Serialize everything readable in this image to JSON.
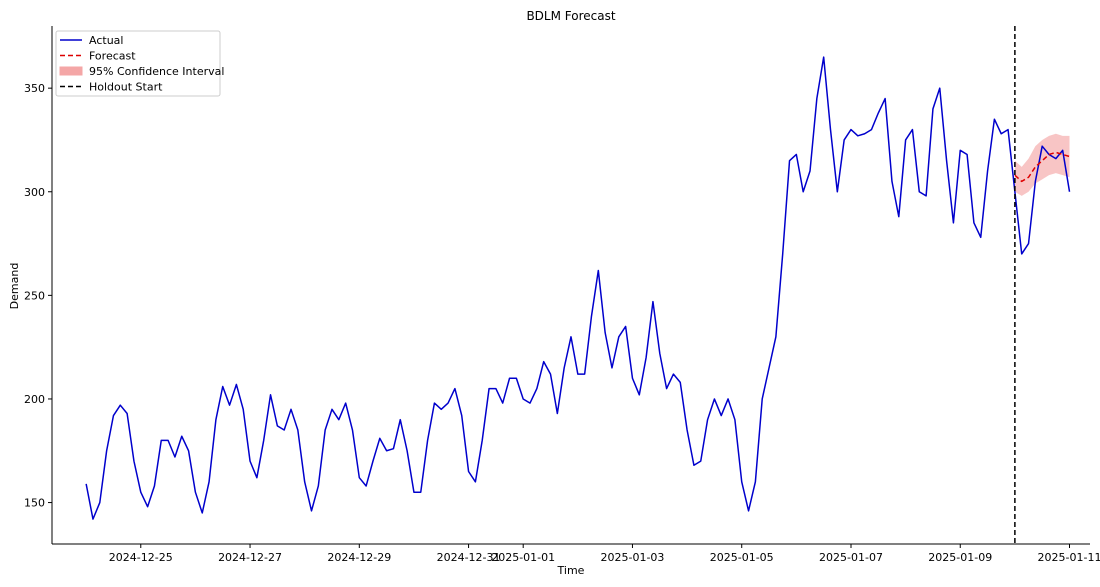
{
  "chart_data": {
    "type": "line",
    "title": "BDLM Forecast",
    "xlabel": "Time",
    "ylabel": "Demand",
    "xlim": [
      "2024-12-23T09:00",
      "2025-01-11T09:00"
    ],
    "ylim": [
      130,
      380
    ],
    "grid": false,
    "legend_position": "top-left",
    "x_ticks": [
      "2024-12-25",
      "2024-12-27",
      "2024-12-29",
      "2024-12-31",
      "2025-01-01",
      "2025-01-03",
      "2025-01-05",
      "2025-01-07",
      "2025-01-09",
      "2025-01-11"
    ],
    "y_ticks": [
      150,
      200,
      250,
      300,
      350
    ],
    "colors": {
      "actual": "#0000cc",
      "forecast": "#dd0000",
      "ci": "#f4a6a6",
      "holdout": "#000000"
    },
    "holdout_start": "2025-01-10T00:00",
    "series": [
      {
        "name": "Actual",
        "style": "solid",
        "points": [
          [
            "2024-12-24T00:00",
            159
          ],
          [
            "2024-12-24T03:00",
            142
          ],
          [
            "2024-12-24T06:00",
            150
          ],
          [
            "2024-12-24T09:00",
            175
          ],
          [
            "2024-12-24T12:00",
            192
          ],
          [
            "2024-12-24T15:00",
            197
          ],
          [
            "2024-12-24T18:00",
            193
          ],
          [
            "2024-12-24T21:00",
            170
          ],
          [
            "2024-12-25T00:00",
            155
          ],
          [
            "2024-12-25T03:00",
            148
          ],
          [
            "2024-12-25T06:00",
            158
          ],
          [
            "2024-12-25T09:00",
            180
          ],
          [
            "2024-12-25T12:00",
            180
          ],
          [
            "2024-12-25T15:00",
            172
          ],
          [
            "2024-12-25T18:00",
            182
          ],
          [
            "2024-12-25T21:00",
            175
          ],
          [
            "2024-12-26T00:00",
            155
          ],
          [
            "2024-12-26T03:00",
            145
          ],
          [
            "2024-12-26T06:00",
            160
          ],
          [
            "2024-12-26T09:00",
            190
          ],
          [
            "2024-12-26T12:00",
            206
          ],
          [
            "2024-12-26T15:00",
            197
          ],
          [
            "2024-12-26T18:00",
            207
          ],
          [
            "2024-12-26T21:00",
            195
          ],
          [
            "2024-12-27T00:00",
            170
          ],
          [
            "2024-12-27T03:00",
            162
          ],
          [
            "2024-12-27T06:00",
            180
          ],
          [
            "2024-12-27T09:00",
            202
          ],
          [
            "2024-12-27T12:00",
            187
          ],
          [
            "2024-12-27T15:00",
            185
          ],
          [
            "2024-12-27T18:00",
            195
          ],
          [
            "2024-12-27T21:00",
            185
          ],
          [
            "2024-12-28T00:00",
            160
          ],
          [
            "2024-12-28T03:00",
            146
          ],
          [
            "2024-12-28T06:00",
            158
          ],
          [
            "2024-12-28T09:00",
            185
          ],
          [
            "2024-12-28T12:00",
            195
          ],
          [
            "2024-12-28T15:00",
            190
          ],
          [
            "2024-12-28T18:00",
            198
          ],
          [
            "2024-12-28T21:00",
            185
          ],
          [
            "2024-12-29T00:00",
            162
          ],
          [
            "2024-12-29T03:00",
            158
          ],
          [
            "2024-12-29T06:00",
            170
          ],
          [
            "2024-12-29T09:00",
            181
          ],
          [
            "2024-12-29T12:00",
            175
          ],
          [
            "2024-12-29T15:00",
            176
          ],
          [
            "2024-12-29T18:00",
            190
          ],
          [
            "2024-12-29T21:00",
            175
          ],
          [
            "2024-12-30T00:00",
            155
          ],
          [
            "2024-12-30T03:00",
            155
          ],
          [
            "2024-12-30T06:00",
            180
          ],
          [
            "2024-12-30T09:00",
            198
          ],
          [
            "2024-12-30T12:00",
            195
          ],
          [
            "2024-12-30T15:00",
            198
          ],
          [
            "2024-12-30T18:00",
            205
          ],
          [
            "2024-12-30T21:00",
            192
          ],
          [
            "2024-12-31T00:00",
            165
          ],
          [
            "2024-12-31T03:00",
            160
          ],
          [
            "2024-12-31T06:00",
            180
          ],
          [
            "2024-12-31T09:00",
            205
          ],
          [
            "2024-12-31T12:00",
            205
          ],
          [
            "2024-12-31T15:00",
            198
          ],
          [
            "2024-12-31T18:00",
            210
          ],
          [
            "2024-12-31T21:00",
            210
          ],
          [
            "2025-01-01T00:00",
            200
          ],
          [
            "2025-01-01T03:00",
            198
          ],
          [
            "2025-01-01T06:00",
            205
          ],
          [
            "2025-01-01T09:00",
            218
          ],
          [
            "2025-01-01T12:00",
            212
          ],
          [
            "2025-01-01T15:00",
            193
          ],
          [
            "2025-01-01T18:00",
            215
          ],
          [
            "2025-01-01T21:00",
            230
          ],
          [
            "2025-01-02T00:00",
            212
          ],
          [
            "2025-01-02T03:00",
            212
          ],
          [
            "2025-01-02T06:00",
            240
          ],
          [
            "2025-01-02T09:00",
            262
          ],
          [
            "2025-01-02T12:00",
            232
          ],
          [
            "2025-01-02T15:00",
            215
          ],
          [
            "2025-01-02T18:00",
            230
          ],
          [
            "2025-01-02T21:00",
            235
          ],
          [
            "2025-01-03T00:00",
            210
          ],
          [
            "2025-01-03T03:00",
            202
          ],
          [
            "2025-01-03T06:00",
            220
          ],
          [
            "2025-01-03T09:00",
            247
          ],
          [
            "2025-01-03T12:00",
            222
          ],
          [
            "2025-01-03T15:00",
            205
          ],
          [
            "2025-01-03T18:00",
            212
          ],
          [
            "2025-01-03T21:00",
            208
          ],
          [
            "2025-01-04T00:00",
            185
          ],
          [
            "2025-01-04T03:00",
            168
          ],
          [
            "2025-01-04T06:00",
            170
          ],
          [
            "2025-01-04T09:00",
            190
          ],
          [
            "2025-01-04T12:00",
            200
          ],
          [
            "2025-01-04T15:00",
            192
          ],
          [
            "2025-01-04T18:00",
            200
          ],
          [
            "2025-01-04T21:00",
            190
          ],
          [
            "2025-01-05T00:00",
            160
          ],
          [
            "2025-01-05T03:00",
            146
          ],
          [
            "2025-01-05T06:00",
            160
          ],
          [
            "2025-01-05T09:00",
            200
          ],
          [
            "2025-01-05T12:00",
            215
          ],
          [
            "2025-01-05T15:00",
            230
          ],
          [
            "2025-01-05T18:00",
            270
          ],
          [
            "2025-01-05T21:00",
            315
          ],
          [
            "2025-01-06T00:00",
            318
          ],
          [
            "2025-01-06T03:00",
            300
          ],
          [
            "2025-01-06T06:00",
            310
          ],
          [
            "2025-01-06T09:00",
            345
          ],
          [
            "2025-01-06T12:00",
            365
          ],
          [
            "2025-01-06T15:00",
            330
          ],
          [
            "2025-01-06T18:00",
            300
          ],
          [
            "2025-01-06T21:00",
            325
          ],
          [
            "2025-01-07T00:00",
            330
          ],
          [
            "2025-01-07T03:00",
            327
          ],
          [
            "2025-01-07T06:00",
            328
          ],
          [
            "2025-01-07T09:00",
            330
          ],
          [
            "2025-01-07T12:00",
            338
          ],
          [
            "2025-01-07T15:00",
            345
          ],
          [
            "2025-01-07T18:00",
            305
          ],
          [
            "2025-01-07T21:00",
            288
          ],
          [
            "2025-01-08T00:00",
            325
          ],
          [
            "2025-01-08T03:00",
            330
          ],
          [
            "2025-01-08T06:00",
            300
          ],
          [
            "2025-01-08T09:00",
            298
          ],
          [
            "2025-01-08T12:00",
            340
          ],
          [
            "2025-01-08T15:00",
            350
          ],
          [
            "2025-01-08T18:00",
            315
          ],
          [
            "2025-01-08T21:00",
            285
          ],
          [
            "2025-01-09T00:00",
            320
          ],
          [
            "2025-01-09T03:00",
            318
          ],
          [
            "2025-01-09T06:00",
            285
          ],
          [
            "2025-01-09T09:00",
            278
          ],
          [
            "2025-01-09T12:00",
            310
          ],
          [
            "2025-01-09T15:00",
            335
          ],
          [
            "2025-01-09T18:00",
            328
          ],
          [
            "2025-01-09T21:00",
            330
          ],
          [
            "2025-01-10T00:00",
            300
          ],
          [
            "2025-01-10T03:00",
            270
          ],
          [
            "2025-01-10T06:00",
            275
          ],
          [
            "2025-01-10T09:00",
            305
          ],
          [
            "2025-01-10T12:00",
            322
          ],
          [
            "2025-01-10T15:00",
            318
          ],
          [
            "2025-01-10T18:00",
            316
          ],
          [
            "2025-01-10T21:00",
            320
          ],
          [
            "2025-01-11T00:00",
            300
          ]
        ]
      },
      {
        "name": "Forecast",
        "style": "dashed",
        "points": [
          [
            "2025-01-10T00:00",
            308
          ],
          [
            "2025-01-10T03:00",
            305
          ],
          [
            "2025-01-10T06:00",
            307
          ],
          [
            "2025-01-10T09:00",
            312
          ],
          [
            "2025-01-10T12:00",
            315
          ],
          [
            "2025-01-10T15:00",
            318
          ],
          [
            "2025-01-10T18:00",
            319
          ],
          [
            "2025-01-10T21:00",
            318
          ],
          [
            "2025-01-11T00:00",
            317
          ]
        ]
      }
    ],
    "confidence_interval": {
      "name": "95% Confidence Interval",
      "lower": [
        [
          "2025-01-10T00:00",
          300
        ],
        [
          "2025-01-10T03:00",
          298
        ],
        [
          "2025-01-10T06:00",
          300
        ],
        [
          "2025-01-10T09:00",
          304
        ],
        [
          "2025-01-10T12:00",
          306
        ],
        [
          "2025-01-10T15:00",
          308
        ],
        [
          "2025-01-10T18:00",
          309
        ],
        [
          "2025-01-10T21:00",
          308
        ],
        [
          "2025-01-11T00:00",
          307
        ]
      ],
      "upper": [
        [
          "2025-01-10T00:00",
          315
        ],
        [
          "2025-01-10T03:00",
          312
        ],
        [
          "2025-01-10T06:00",
          316
        ],
        [
          "2025-01-10T09:00",
          322
        ],
        [
          "2025-01-10T12:00",
          325
        ],
        [
          "2025-01-10T15:00",
          327
        ],
        [
          "2025-01-10T18:00",
          328
        ],
        [
          "2025-01-10T21:00",
          327
        ],
        [
          "2025-01-11T00:00",
          327
        ]
      ]
    },
    "legend": [
      {
        "label": "Actual",
        "kind": "line-solid",
        "color": "#0000cc"
      },
      {
        "label": "Forecast",
        "kind": "line-dashed",
        "color": "#dd0000"
      },
      {
        "label": "95% Confidence Interval",
        "kind": "patch",
        "color": "#f4a6a6"
      },
      {
        "label": "Holdout Start",
        "kind": "line-dashed",
        "color": "#000000"
      }
    ]
  }
}
